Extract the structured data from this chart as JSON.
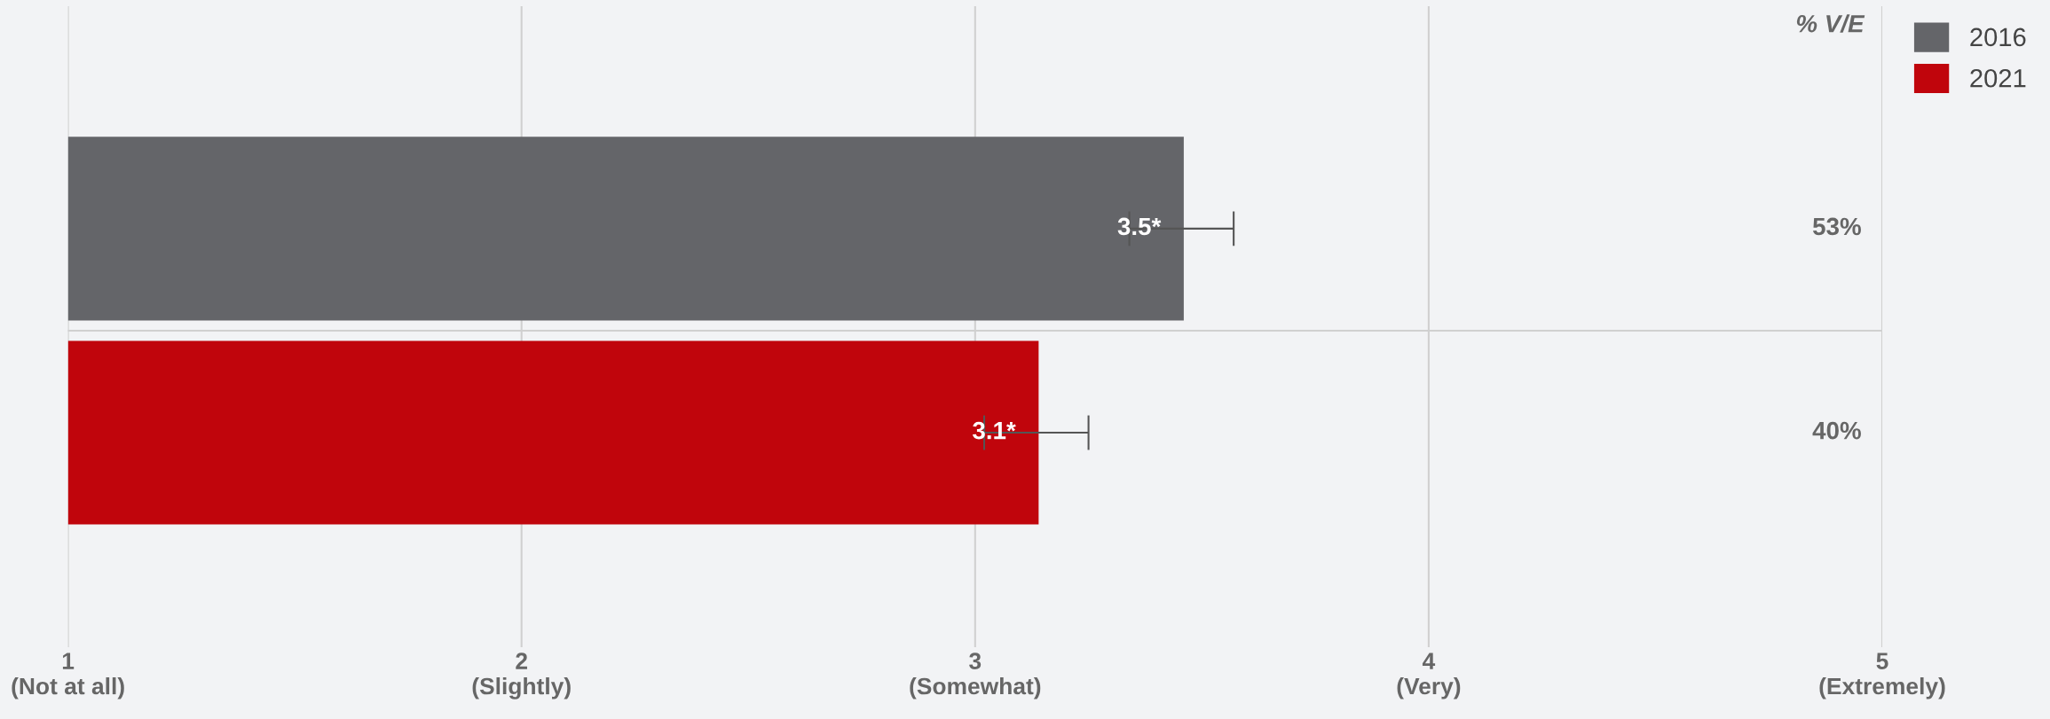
{
  "chart_data": {
    "type": "bar",
    "orientation": "horizontal",
    "categories": [
      null,
      null
    ],
    "series": [
      {
        "name": "2016",
        "color": "#646569",
        "values": [
          3.46,
          null
        ],
        "errors": [
          [
            3.34,
            3.57
          ],
          null
        ],
        "value_labels": [
          "3.5*",
          null
        ]
      },
      {
        "name": "2021",
        "color": "#c0050c",
        "values": [
          null,
          3.14
        ],
        "errors": [
          null,
          [
            3.02,
            3.25
          ]
        ],
        "value_labels": [
          null,
          "3.1*"
        ]
      }
    ],
    "xlim": [
      1,
      5
    ],
    "xticks": [
      {
        "value": 1,
        "label": "1\n(Not at all)"
      },
      {
        "value": 2,
        "label": "2\n(Slightly)"
      },
      {
        "value": 3,
        "label": "3\n(Somewhat)"
      },
      {
        "value": 4,
        "label": "4\n(Very)"
      },
      {
        "value": 5,
        "label": "5\n(Extremely)"
      }
    ],
    "annotations": [
      "% V/E",
      "53%",
      "40%"
    ],
    "grid": "x",
    "legend": "top right",
    "tick_labels": "x"
  }
}
